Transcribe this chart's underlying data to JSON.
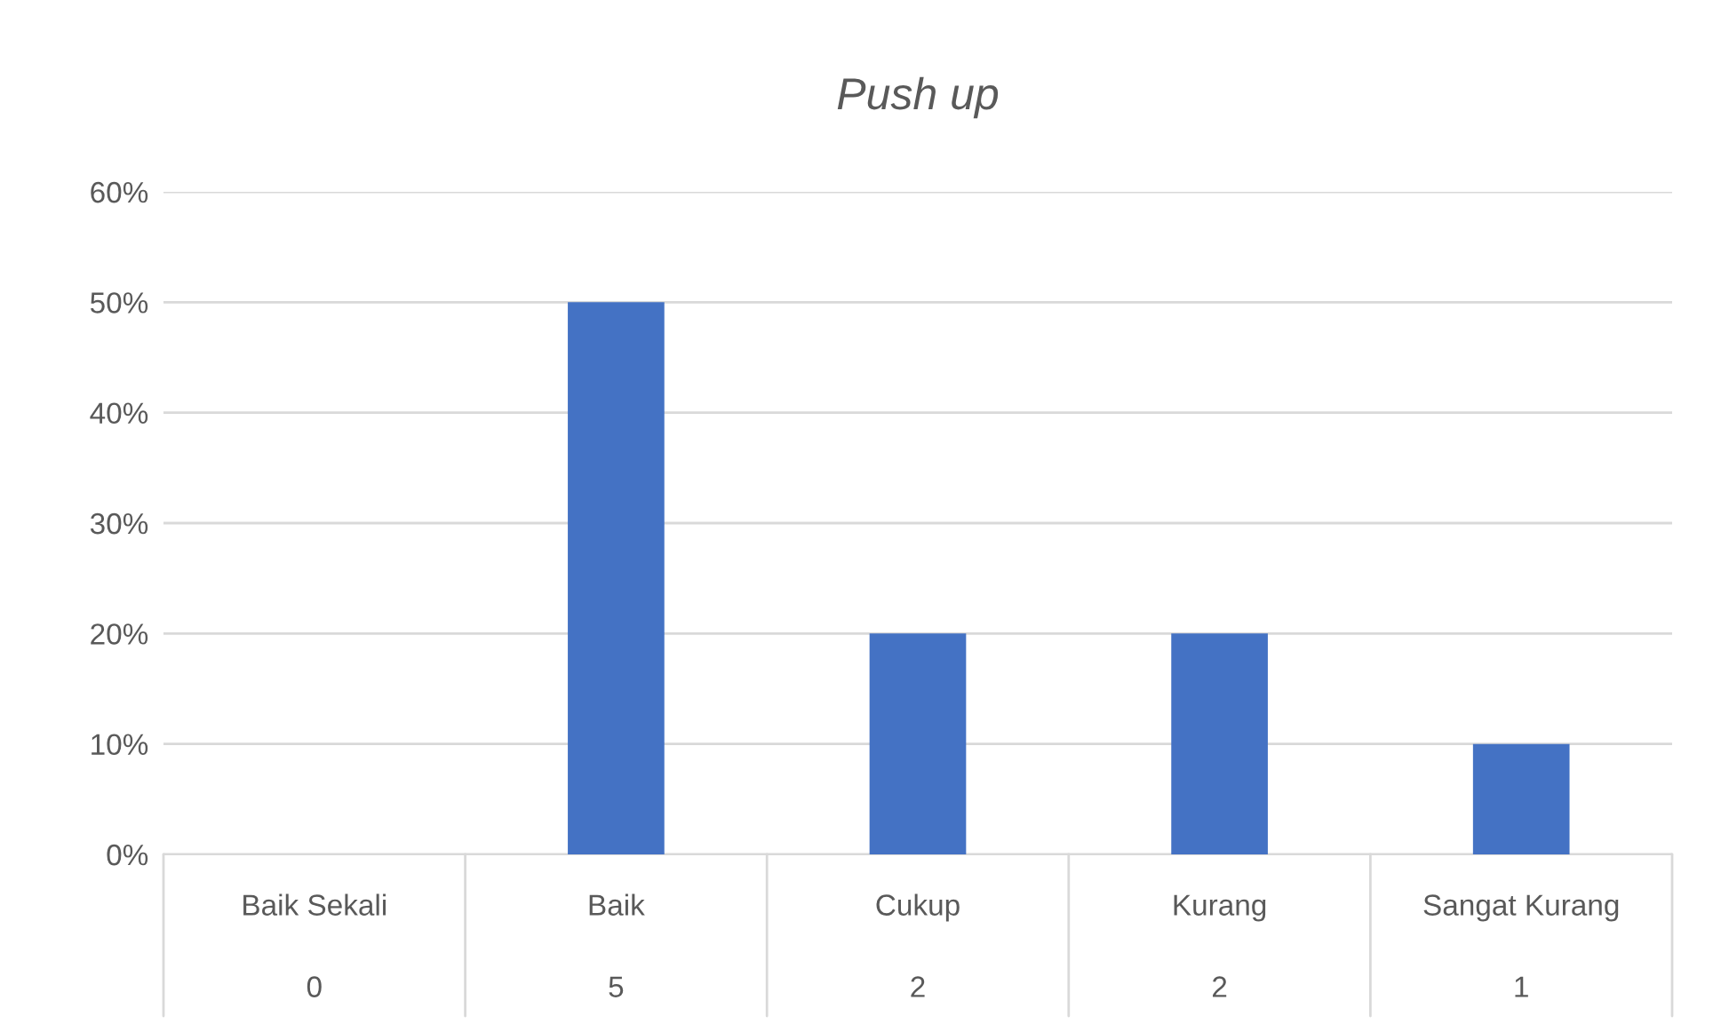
{
  "chart_data": {
    "type": "bar",
    "title": "Push up",
    "categories": [
      "Baik Sekali",
      "Baik",
      "Cukup",
      "Kurang",
      "Sangat Kurang"
    ],
    "values": [
      0,
      50,
      20,
      20,
      10
    ],
    "color": "#4472c4",
    "ylim": [
      0,
      60
    ],
    "yticks": [
      {
        "value": 0,
        "label": "0%"
      },
      {
        "value": 10,
        "label": "10%"
      },
      {
        "value": 20,
        "label": "20%"
      },
      {
        "value": 30,
        "label": "30%"
      },
      {
        "value": 40,
        "label": "40%"
      },
      {
        "value": 50,
        "label": "50%"
      },
      {
        "value": 60,
        "label": "60%"
      }
    ],
    "grid": "y",
    "annotations": [
      "0",
      "5",
      "2",
      "2",
      "1"
    ]
  }
}
